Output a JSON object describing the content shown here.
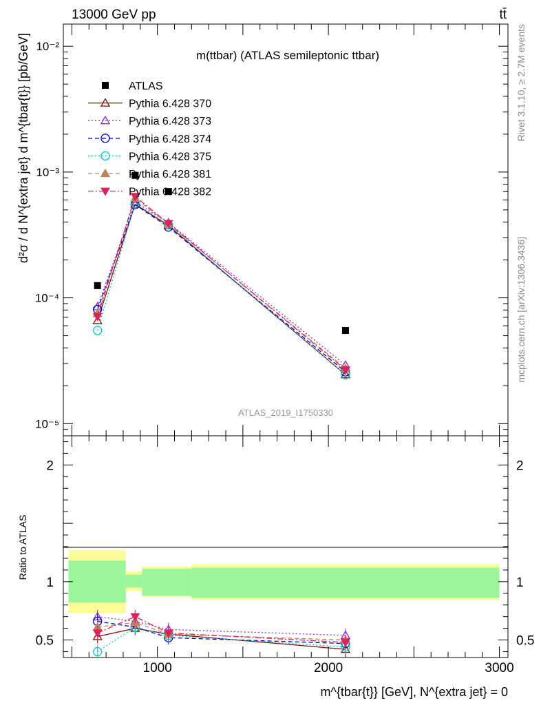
{
  "header": {
    "left": "13000 GeV pp",
    "right": "tt̄"
  },
  "side_labels": {
    "rivet": "Rivet 3.1.10, ≥ 2.7M events",
    "mcplots": "mcplots.cern.ch [arXiv:1306.3436]"
  },
  "analysis_id": "ATLAS_2019_I1750330",
  "colors": {
    "ATLAS": "#000000",
    "370": "#8b0000",
    "373": "#8a2be2",
    "374": "#0000cd",
    "375": "#00c8c8",
    "381": "#b8865a",
    "382": "#e0205a",
    "band_inner": "#9bf59b",
    "band_outer": "#fbfb98"
  },
  "chart_data": [
    {
      "type": "line",
      "title": "m(ttbar) (ATLAS semileptonic ttbar)",
      "xlabel": "m^{tbar{t}} [GeV], N^{extra jet} = 0",
      "ylabel": "d²σ / d N^{extra jet} d m^{tbar{t}} [pb/GeV]",
      "yscale": "log",
      "ylim": [
        8e-06,
        0.015
      ],
      "xlim": [
        450,
        3050
      ],
      "ytick_labels": [
        "10⁻⁵",
        "10⁻⁴",
        "10⁻³",
        "10⁻²"
      ],
      "legend_position": "top-left",
      "x": [
        650,
        870,
        1065,
        2100
      ],
      "series": [
        {
          "name": "ATLAS",
          "values": [
            0.000125,
            0.00094,
            0.0007,
            5.5e-05
          ]
        },
        {
          "name": "Pythia 6.428 370",
          "values": [
            6.6e-05,
            0.000555,
            0.000375,
            2.45e-05
          ]
        },
        {
          "name": "Pythia 6.428 373",
          "values": [
            8.5e-05,
            0.00058,
            0.000395,
            2.92e-05
          ]
        },
        {
          "name": "Pythia 6.428 374",
          "values": [
            8.1e-05,
            0.00055,
            0.000365,
            2.58e-05
          ]
        },
        {
          "name": "Pythia 6.428 375",
          "values": [
            5.5e-05,
            0.000565,
            0.00038,
            2.45e-05
          ]
        },
        {
          "name": "Pythia 6.428 381",
          "values": [
            7.5e-05,
            0.00062,
            0.000385,
            2.75e-05
          ]
        },
        {
          "name": "Pythia 6.428 382",
          "values": [
            7.1e-05,
            0.00064,
            0.00039,
            2.68e-05
          ]
        }
      ]
    },
    {
      "type": "line",
      "ylabel": "Ratio to ATLAS",
      "ylim": [
        0.35,
        2.25
      ],
      "xlim": [
        450,
        3050
      ],
      "ytick_labels": [
        "0.5",
        "1",
        "2"
      ],
      "xtick_labels": [
        "1000",
        "2000",
        "3000"
      ],
      "x": [
        650,
        870,
        1065,
        2100
      ],
      "bins": [
        [
          480,
          815
        ],
        [
          815,
          910
        ],
        [
          910,
          1200
        ],
        [
          1200,
          3000
        ]
      ],
      "band_inner": [
        [
          0.82,
          1.18
        ],
        [
          0.95,
          1.06
        ],
        [
          0.88,
          1.11
        ],
        [
          0.86,
          1.12
        ]
      ],
      "band_outer": [
        [
          0.73,
          1.27
        ],
        [
          0.92,
          1.09
        ],
        [
          0.87,
          1.13
        ],
        [
          0.84,
          1.15
        ]
      ],
      "series": [
        {
          "name": "Pythia 6.428 370",
          "values": [
            0.53,
            0.6,
            0.55,
            0.42
          ]
        },
        {
          "name": "Pythia 6.428 373",
          "values": [
            0.7,
            0.66,
            0.59,
            0.54
          ]
        },
        {
          "name": "Pythia 6.428 374",
          "values": [
            0.66,
            0.61,
            0.52,
            0.47
          ]
        },
        {
          "name": "Pythia 6.428 375",
          "values": [
            0.4,
            0.61,
            0.54,
            0.44
          ]
        },
        {
          "name": "Pythia 6.428 381",
          "values": [
            0.61,
            0.65,
            0.55,
            0.5
          ]
        },
        {
          "name": "Pythia 6.428 382",
          "values": [
            0.56,
            0.7,
            0.56,
            0.48
          ]
        }
      ]
    }
  ]
}
